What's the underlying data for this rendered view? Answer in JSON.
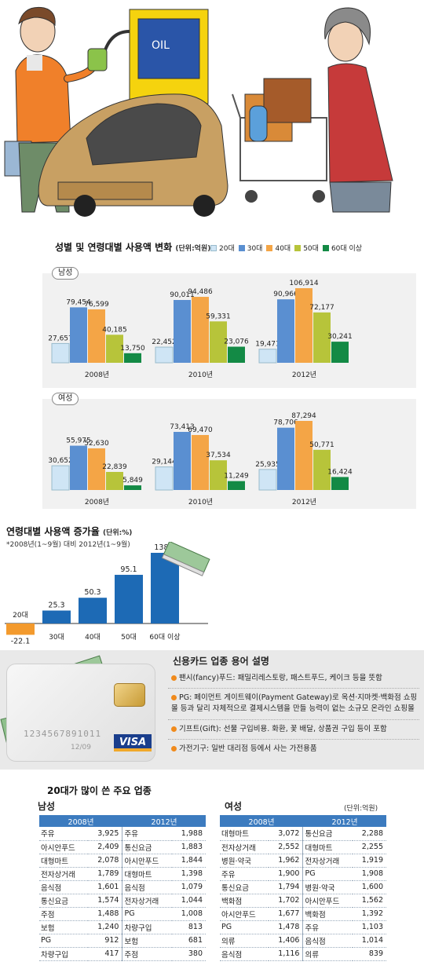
{
  "colors": {
    "20s": "#cfe5f5",
    "30s": "#5a8fd1",
    "40s": "#f4a546",
    "50s": "#b7c43a",
    "60s": "#138a45",
    "increase_bar": "#1d6ab5",
    "decrease_bar": "#f39a2d",
    "table_header": "#3c7bbf"
  },
  "chart_data": [
    {
      "type": "bar",
      "title": "성별 및 연령대별 사용액 변화",
      "unit": "(단위:억원)",
      "legend": [
        "20대",
        "30대",
        "40대",
        "50대",
        "60대 이상"
      ],
      "groups": [
        {
          "label": "남성",
          "categories": [
            "2008년",
            "2010년",
            "2012년"
          ],
          "series": [
            {
              "name": "20대",
              "values": [
                27657,
                22452,
                19471
              ],
              "labels": [
                "27,657",
                "22,452",
                "19,471"
              ]
            },
            {
              "name": "30대",
              "values": [
                79454,
                90011,
                90966
              ],
              "labels": [
                "79,454",
                "90,011",
                "90,966"
              ]
            },
            {
              "name": "40대",
              "values": [
                76599,
                94486,
                106914
              ],
              "labels": [
                "76,599",
                "94,486",
                "106,914"
              ]
            },
            {
              "name": "50대",
              "values": [
                40185,
                59331,
                72177
              ],
              "labels": [
                "40,185",
                "59,331",
                "72,177"
              ]
            },
            {
              "name": "60대 이상",
              "values": [
                13750,
                23076,
                30241
              ],
              "labels": [
                "13,750",
                "23,076",
                "30,241"
              ]
            }
          ]
        },
        {
          "label": "여성",
          "categories": [
            "2008년",
            "2010년",
            "2012년"
          ],
          "series": [
            {
              "name": "20대",
              "values": [
                30652,
                29144,
                25935
              ],
              "labels": [
                "30,652",
                "29,144",
                "25,935"
              ]
            },
            {
              "name": "30대",
              "values": [
                55975,
                73413,
                78706
              ],
              "labels": [
                "55,975",
                "73,413",
                "78,706"
              ]
            },
            {
              "name": "40대",
              "values": [
                52630,
                69470,
                87294
              ],
              "labels": [
                "52,630",
                "69,470",
                "87,294"
              ]
            },
            {
              "name": "50대",
              "values": [
                22839,
                37534,
                50771
              ],
              "labels": [
                "22,839",
                "37,534",
                "50,771"
              ]
            },
            {
              "name": "60대 이상",
              "values": [
                5849,
                11249,
                16424
              ],
              "labels": [
                "5,849",
                "11,249",
                "16,424"
              ]
            }
          ]
        }
      ]
    },
    {
      "type": "bar",
      "title": "연령대별 사용액 증가율",
      "unit": "(단위:%)",
      "note": "*2008년(1~9월) 대비 2012년(1~9월)",
      "categories": [
        "20대",
        "30대",
        "40대",
        "50대",
        "60대 이상"
      ],
      "values": [
        -22.1,
        25.3,
        50.3,
        95.1,
        138.1
      ],
      "labels": [
        "-22.1",
        "25.3",
        "50.3",
        "95.1",
        "138.1"
      ]
    },
    {
      "type": "table",
      "title": "20대가 많이 쓴 주요 업종",
      "unit": "(단위:억원)",
      "tables": [
        {
          "label": "남성",
          "headers": [
            "2008년",
            "2012년"
          ],
          "rows": [
            [
              "주유",
              "3,925",
              "주유",
              "1,988"
            ],
            [
              "아시안푸드",
              "2,409",
              "통신요금",
              "1,883"
            ],
            [
              "대형마트",
              "2,078",
              "아시안푸드",
              "1,844"
            ],
            [
              "전자상거래",
              "1,789",
              "대형마트",
              "1,398"
            ],
            [
              "음식점",
              "1,601",
              "음식점",
              "1,079"
            ],
            [
              "통신요금",
              "1,574",
              "전자상거래",
              "1,044"
            ],
            [
              "주점",
              "1,488",
              "PG",
              "1,008"
            ],
            [
              "보험",
              "1,240",
              "차량구입",
              "813"
            ],
            [
              "PG",
              "912",
              "보험",
              "681"
            ],
            [
              "차량구입",
              "417",
              "주점",
              "380"
            ]
          ]
        },
        {
          "label": "여성",
          "headers": [
            "2008년",
            "2012년"
          ],
          "rows": [
            [
              "대형마트",
              "3,072",
              "통신요금",
              "2,288"
            ],
            [
              "전자상거래",
              "2,552",
              "대형마트",
              "2,255"
            ],
            [
              "병원·약국",
              "1,962",
              "전자상거래",
              "1,919"
            ],
            [
              "주유",
              "1,900",
              "PG",
              "1,908"
            ],
            [
              "통신요금",
              "1,794",
              "병원·약국",
              "1,600"
            ],
            [
              "백화점",
              "1,702",
              "아시안푸드",
              "1,562"
            ],
            [
              "아시안푸드",
              "1,677",
              "백화점",
              "1,392"
            ],
            [
              "PG",
              "1,478",
              "주유",
              "1,103"
            ],
            [
              "의류",
              "1,406",
              "음식점",
              "1,014"
            ],
            [
              "음식점",
              "1,116",
              "의류",
              "839"
            ]
          ]
        }
      ]
    }
  ],
  "illustration": {
    "pump_sign": "OIL"
  },
  "card_info": {
    "title": "신용카드 업종 용어 설명",
    "terms": [
      "팬시(fancy)푸드: 패밀리레스토랑, 패스트푸드, 케이크 등을 뜻함",
      "PG: 페이먼트 게이트웨이(Payment Gateway)로 옥션·지마켓·백화점 쇼핑몰 등과 달리 자체적으로 결제시스템을 만들 능력이 없는 소규모 온라인 쇼핑몰",
      "기프트(Gift): 선물 구입비용. 화환, 꽃 배달, 상품권 구입 등이 포함",
      "가전기구: 일반 대리점 등에서 사는 가전용품"
    ],
    "card_number": "1234567891011",
    "card_expiry": "12/09",
    "card_brand": "VISA"
  }
}
